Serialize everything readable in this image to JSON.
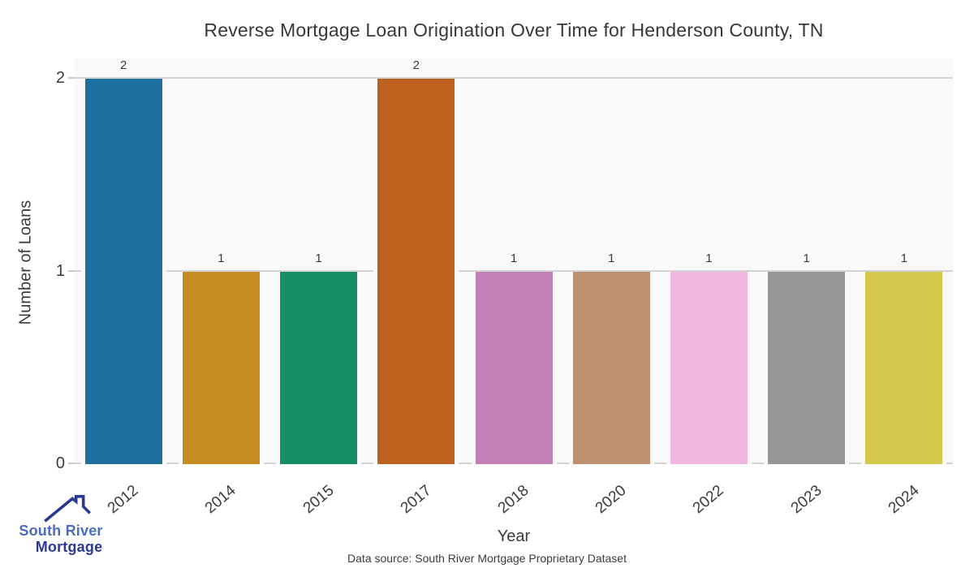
{
  "title": "Reverse Mortgage Loan Origination Over Time for Henderson County, TN",
  "source_note": "Data source: South River Mortgage Proprietary Dataset",
  "logo": {
    "line1": "South River",
    "line2": "Mortgage",
    "roof_color": "#2b3a8f",
    "line1_color": "#4c6db6",
    "line2_color": "#2b3a8f"
  },
  "colors": {
    "plot_background": "#f9f9f9",
    "gridline": "#d3d3d3",
    "text": "#3b3b3b"
  },
  "chart_data": {
    "type": "bar",
    "title": "Reverse Mortgage Loan Origination Over Time for Henderson County, TN",
    "xlabel": "Year",
    "ylabel": "Number of Loans",
    "categories": [
      "2012",
      "2014",
      "2015",
      "2017",
      "2018",
      "2020",
      "2022",
      "2023",
      "2024"
    ],
    "values": [
      2,
      1,
      1,
      2,
      1,
      1,
      1,
      1,
      1
    ],
    "bar_labels": [
      "2",
      "1",
      "1",
      "2",
      "1",
      "1",
      "1",
      "1",
      "1"
    ],
    "bar_colors": [
      "#1d6f9e",
      "#c68b21",
      "#178d68",
      "#bc621e",
      "#c281b6",
      "#bd9170",
      "#f1b7de",
      "#969696",
      "#d3c84b"
    ],
    "yticks": [
      0,
      1,
      2
    ],
    "ylim": [
      0,
      2.105
    ],
    "grid": true,
    "legend": false
  }
}
